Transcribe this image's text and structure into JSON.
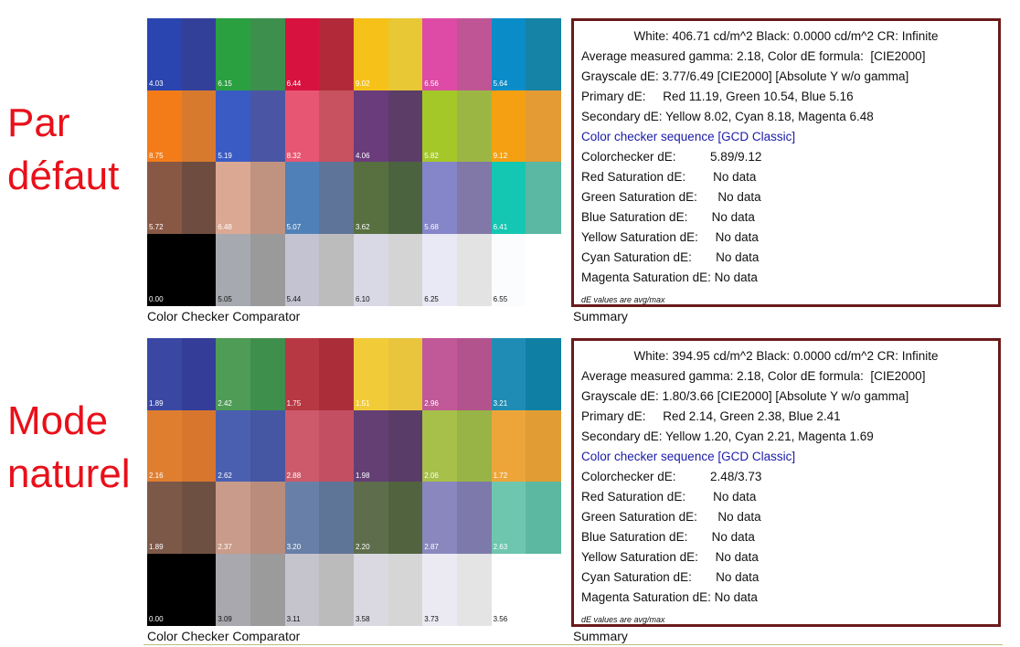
{
  "sections": [
    {
      "mode_label": [
        "Par",
        "défaut"
      ],
      "grid_caption": "Color Checker Comparator",
      "summary_caption": "Summary",
      "colors": [
        "#2a45b0",
        "#33409a",
        "#2aa040",
        "#3d8f4e",
        "#d8123e",
        "#b22a3a",
        "#f6c21a",
        "#e8c834",
        "#dd4ba6",
        "#bf5595",
        "#0a8cc8",
        "#1583a6",
        "#f47c18",
        "#d87a2e",
        "#3a5bc4",
        "#4a56a4",
        "#e75672",
        "#c8525f",
        "#6a3c7c",
        "#5c3d68",
        "#a4c828",
        "#9cb644",
        "#f5a012",
        "#e49b34",
        "#885845",
        "#6e4d40",
        "#daa893",
        "#c09380",
        "#4f81b8",
        "#5e7498",
        "#587040",
        "#4c633f",
        "#8585c9",
        "#8178a8",
        "#14c7b2",
        "#5ab8a3",
        "#000000",
        "#000000",
        "#a6a9af",
        "#9a9a9a",
        "#c4c3d2",
        "#bcbcbc",
        "#d8d9e4",
        "#d4d4d4",
        "#e8e9f4",
        "#e3e3e3",
        "#fbfcfe",
        "#ffffff"
      ],
      "values": [
        "4.03",
        "6.15",
        "6.44",
        "9.02",
        "6.56",
        "5.64",
        "8.75",
        "5.19",
        "8.32",
        "4.06",
        "5.82",
        "9.12",
        "5.72",
        "6.48",
        "5.07",
        "3.62",
        "5.68",
        "6.41",
        "0.00",
        "5.05",
        "5.44",
        "6.10",
        "6.25",
        "6.55"
      ],
      "summary": {
        "header": "White: 406.71 cd/m^2 Black: 0.0000 cd/m^2 CR: Infinite",
        "lines": [
          "Average measured gamma: 2.18, Color dE formula:  [CIE2000]",
          "Grayscale dE: 3.77/6.49 [CIE2000] [Absolute Y w/o gamma]",
          "Primary dE:     Red 11.19, Green 10.54, Blue 5.16",
          "Secondary dE: Yellow 8.02, Cyan 8.18, Magenta 6.48"
        ],
        "sequence": "Color checker sequence [GCD Classic]",
        "checker": "Colorchecker dE:          5.89/9.12",
        "saturation": [
          "Red Saturation dE:        No data",
          "Green Saturation dE:      No data",
          "Blue Saturation dE:       No data",
          "Yellow Saturation dE:     No data",
          "Cyan Saturation dE:       No data",
          "Magenta Saturation dE: No data"
        ],
        "note": "dE values are avg/max"
      }
    },
    {
      "mode_label": [
        "Mode",
        "naturel"
      ],
      "grid_caption": "Color Checker Comparator",
      "summary_caption": "Summary",
      "colors": [
        "#3a48a4",
        "#343e98",
        "#4e9c55",
        "#3f8f4c",
        "#b73843",
        "#ab2d39",
        "#f2cb38",
        "#e9c53e",
        "#c15898",
        "#b3538e",
        "#1e8cb4",
        "#0f80a4",
        "#e07e30",
        "#d9762e",
        "#4a5fb0",
        "#4556a2",
        "#cd5a6a",
        "#c25062",
        "#633f74",
        "#5a3c68",
        "#a6c04a",
        "#98b346",
        "#eda53a",
        "#e19d34",
        "#7c5849",
        "#6e5042",
        "#c99b8a",
        "#b98c7c",
        "#6880a8",
        "#5f7598",
        "#5e6e4c",
        "#52643f",
        "#8a87be",
        "#7d7aab",
        "#6ec6ae",
        "#5cb8a0",
        "#000000",
        "#000000",
        "#a9a8ae",
        "#9b9b9b",
        "#c5c4cc",
        "#bbbbbb",
        "#dad9e2",
        "#d6d6d6",
        "#ebeaf2",
        "#e4e4e4",
        "#ffffff",
        "#ffffff"
      ],
      "values": [
        "1.89",
        "2.42",
        "1.75",
        "1.51",
        "2.96",
        "3.21",
        "2.16",
        "2.62",
        "2.88",
        "1.98",
        "2.06",
        "1.72",
        "1.89",
        "2.37",
        "3.20",
        "2.20",
        "2.87",
        "2.63",
        "0.00",
        "3.09",
        "3.11",
        "3.58",
        "3.73",
        "3.56"
      ],
      "summary": {
        "header": "White: 394.95 cd/m^2 Black: 0.0000 cd/m^2 CR: Infinite",
        "lines": [
          "Average measured gamma: 2.18, Color dE formula:  [CIE2000]",
          "Grayscale dE: 1.80/3.66 [CIE2000] [Absolute Y w/o gamma]",
          "Primary dE:     Red 2.14, Green 2.38, Blue 2.41",
          "Secondary dE: Yellow 1.20, Cyan 2.21, Magenta 1.69"
        ],
        "sequence": "Color checker sequence [GCD Classic]",
        "checker": "Colorchecker dE:          2.48/3.73",
        "saturation": [
          "Red Saturation dE:        No data",
          "Green Saturation dE:      No data",
          "Blue Saturation dE:       No data",
          "Yellow Saturation dE:     No data",
          "Cyan Saturation dE:       No data",
          "Magenta Saturation dE: No data"
        ],
        "note": "dE values are avg/max"
      }
    }
  ]
}
